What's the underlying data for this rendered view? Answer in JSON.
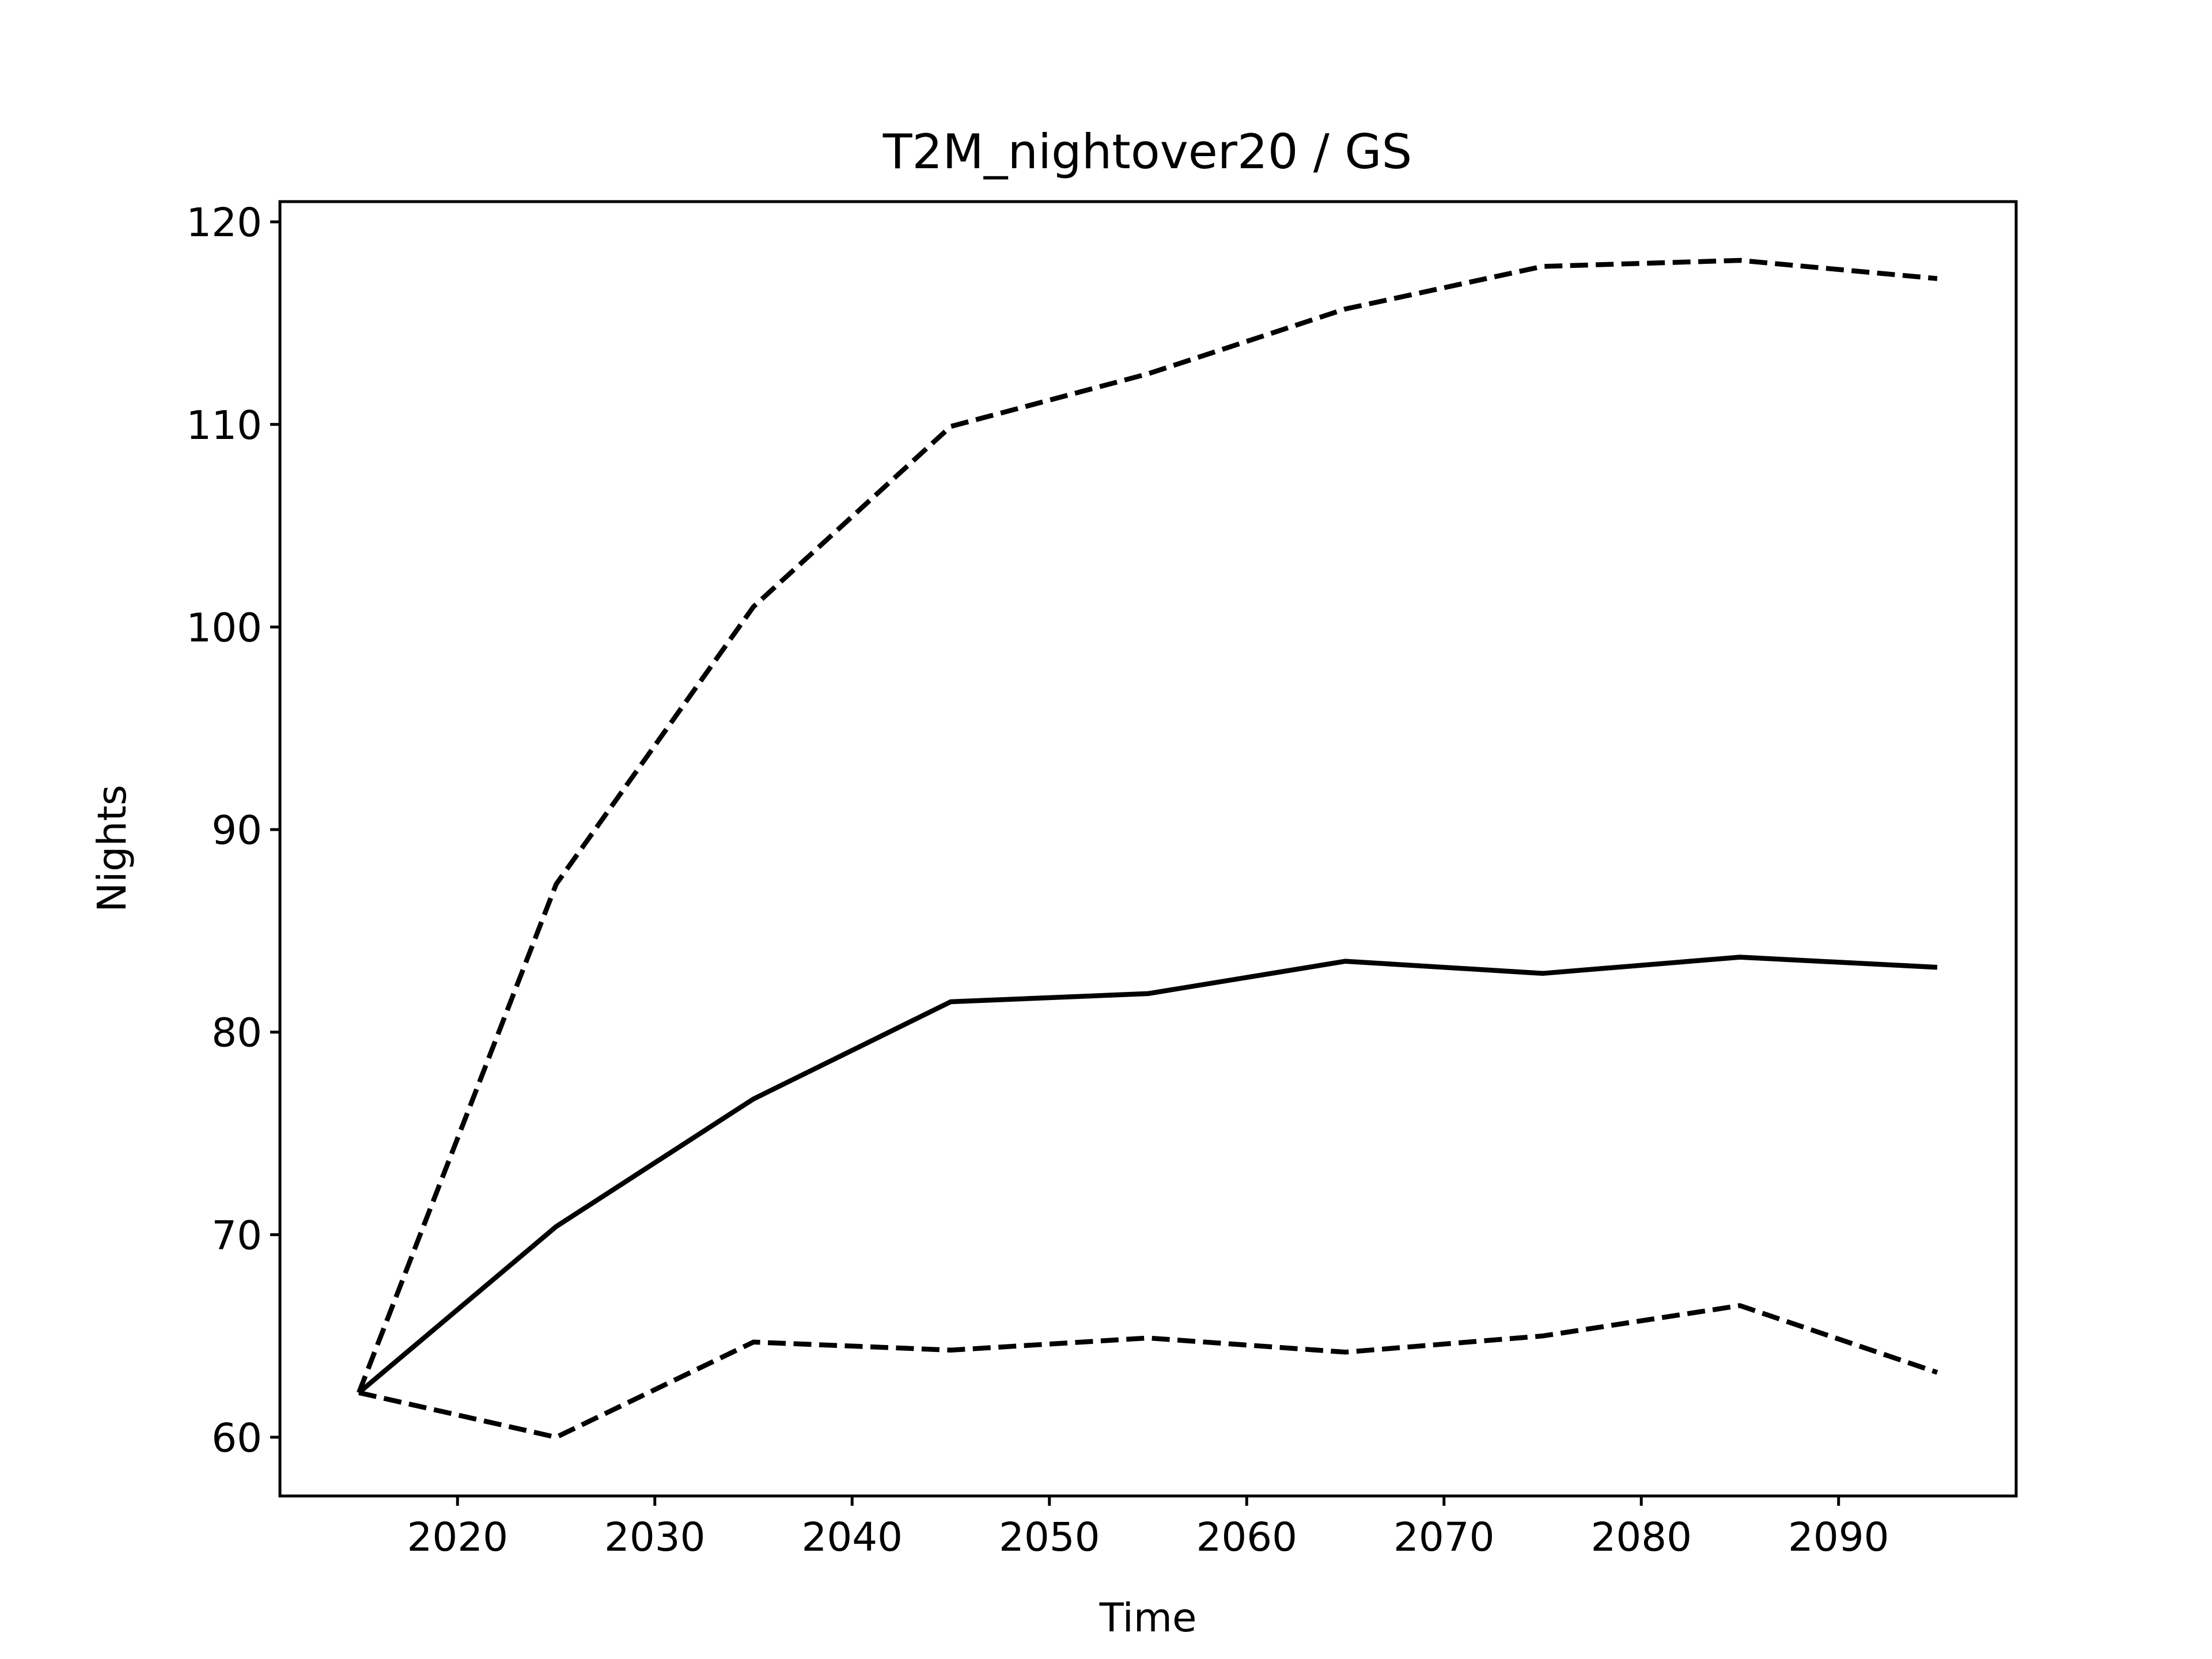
{
  "chart_data": {
    "type": "line",
    "title": "T2M_nightover20 / GS",
    "xlabel": "Time",
    "ylabel": "Nights",
    "xlim": [
      2011,
      2099
    ],
    "ylim": [
      57.1,
      121.0
    ],
    "xticks": [
      2020,
      2030,
      2040,
      2050,
      2060,
      2070,
      2080,
      2090
    ],
    "yticks": [
      60,
      70,
      80,
      90,
      100,
      110,
      120
    ],
    "grid": false,
    "x": [
      2015,
      2025,
      2035,
      2045,
      2055,
      2065,
      2075,
      2085,
      2095
    ],
    "series": [
      {
        "style": "solid",
        "color": "#000000",
        "values": [
          62.2,
          70.4,
          76.7,
          81.5,
          81.9,
          83.5,
          82.9,
          83.7,
          83.2
        ]
      },
      {
        "style": "dashed",
        "color": "#000000",
        "values": [
          62.2,
          87.3,
          101.0,
          109.9,
          112.5,
          115.7,
          117.8,
          118.1,
          117.2
        ]
      },
      {
        "style": "dashed",
        "color": "#000000",
        "values": [
          62.2,
          60.0,
          64.7,
          64.3,
          64.9,
          64.2,
          65.0,
          66.5,
          63.2
        ]
      }
    ]
  }
}
